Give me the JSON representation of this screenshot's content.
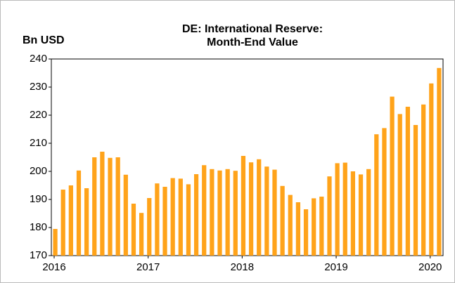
{
  "chart_data": {
    "type": "bar",
    "title": "DE: International Reserve:",
    "subtitle": "Month-End Value",
    "y_label": "Bn USD",
    "color": "#ffa31a",
    "categories": [
      "2016",
      null,
      null,
      null,
      null,
      null,
      null,
      null,
      null,
      null,
      null,
      null,
      "2017",
      null,
      null,
      null,
      null,
      null,
      null,
      null,
      null,
      null,
      null,
      null,
      "2018",
      null,
      null,
      null,
      null,
      null,
      null,
      null,
      null,
      null,
      null,
      null,
      "2019",
      null,
      null,
      null,
      null,
      null,
      null,
      null,
      null,
      null,
      null,
      null,
      "2020",
      null
    ],
    "values": [
      179.5,
      193.5,
      195,
      200.3,
      194,
      205,
      207,
      204.8,
      205,
      198.8,
      188.5,
      185.2,
      190.5,
      195.7,
      194.5,
      197.6,
      197.4,
      195.4,
      199,
      202.2,
      200.8,
      200.3,
      200.8,
      200.2,
      205.5,
      203.2,
      204.3,
      201.7,
      200.6,
      194.8,
      191.6,
      189,
      186.5,
      190.4,
      191,
      198.2,
      202.9,
      203.1,
      200,
      198.9,
      200.8,
      213.2,
      215.4,
      226.6,
      220.4,
      223,
      216.5,
      223.8,
      231.3,
      236.8
    ],
    "ylim": [
      170,
      240
    ],
    "yticks": [
      170,
      180,
      190,
      200,
      210,
      220,
      230,
      240
    ]
  }
}
